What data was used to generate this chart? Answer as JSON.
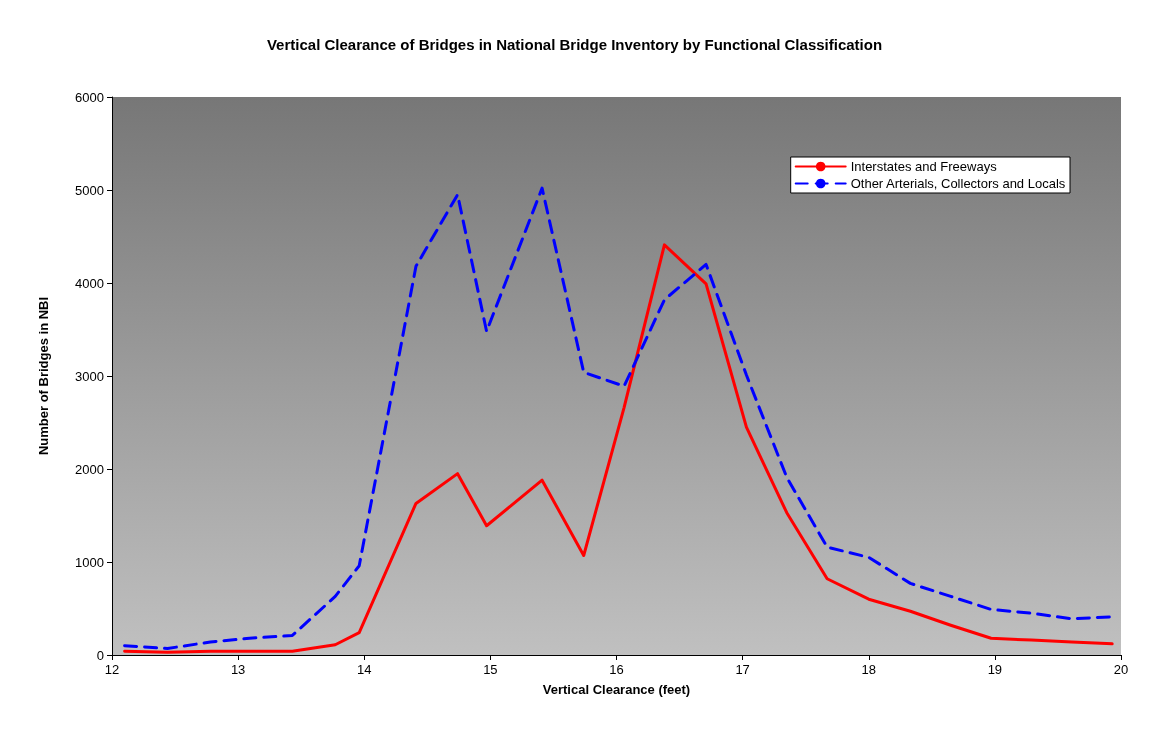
{
  "chart_data": {
    "type": "line",
    "title": "Vertical Clearance of Bridges in National Bridge Inventory by Functional Classification",
    "xlabel": "Vertical Clearance (feet)",
    "ylabel": "Number of Bridges in NBI",
    "x": [
      12.1,
      12.44,
      12.78,
      13.09,
      13.43,
      13.77,
      13.96,
      14.41,
      14.74,
      14.97,
      15.41,
      15.74,
      16.06,
      16.38,
      16.71,
      17.03,
      17.35,
      17.67,
      18.0,
      18.33,
      18.65,
      18.97,
      19.29,
      19.61,
      19.93
    ],
    "series": [
      {
        "name": "Interstates and Freeways",
        "color": "#ff0000",
        "line_style": "solid",
        "values": [
          40,
          30,
          40,
          40,
          40,
          110,
          240,
          1630,
          1950,
          1390,
          1880,
          1070,
          2660,
          4410,
          3990,
          2450,
          1530,
          820,
          600,
          470,
          320,
          180,
          160,
          140,
          120
        ]
      },
      {
        "name": "Other Arterials, Collectors and Locals",
        "color": "#0000ff",
        "line_style": "dashed",
        "values": [
          100,
          70,
          140,
          180,
          210,
          630,
          960,
          4180,
          4950,
          3480,
          5020,
          3040,
          2890,
          3820,
          4200,
          3010,
          1910,
          1160,
          1050,
          770,
          630,
          490,
          450,
          390,
          410
        ]
      }
    ],
    "xlim": [
      12,
      20
    ],
    "xticks": [
      12,
      13,
      14,
      15,
      16,
      17,
      18,
      19,
      20
    ],
    "ylim": [
      0,
      6000
    ],
    "yticks": [
      0,
      1000,
      2000,
      3000,
      4000,
      5000,
      6000
    ],
    "grid": false,
    "legend": "top right",
    "marker": "none"
  }
}
